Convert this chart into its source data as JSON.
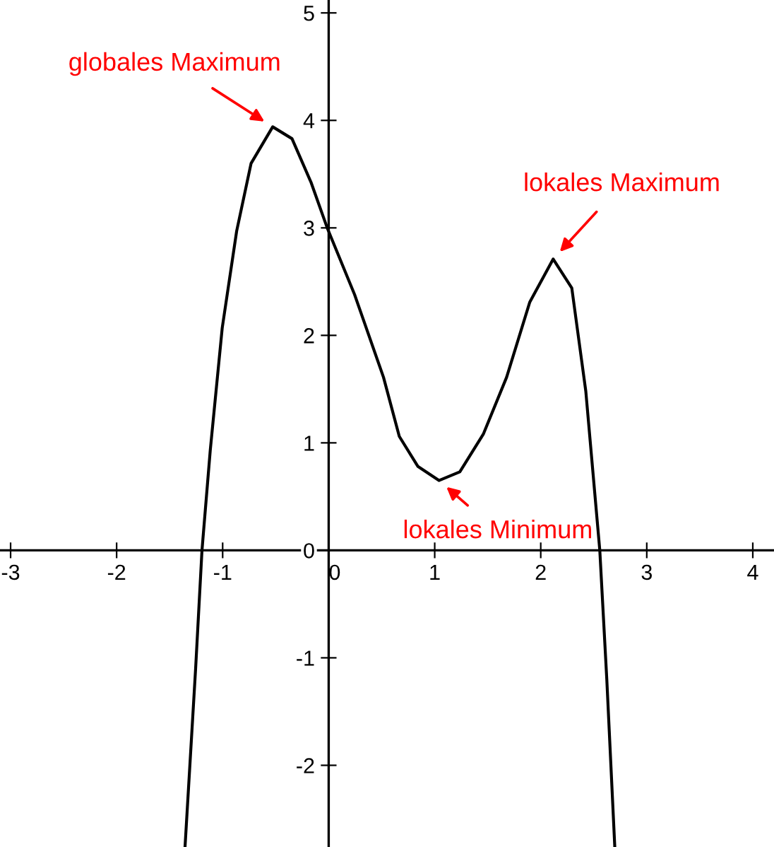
{
  "chart_data": {
    "type": "line",
    "series": [
      {
        "color": "#000000",
        "x": [
          -1.355,
          -1.255,
          -1.195,
          -1.117,
          -1.004,
          -0.868,
          -0.732,
          -0.528,
          -0.346,
          -0.165,
          -0.01,
          0.244,
          0.517,
          0.666,
          0.842,
          1.04,
          1.237,
          1.458,
          1.678,
          1.897,
          2.117,
          2.293,
          2.425,
          2.557,
          2.623,
          2.698
        ],
        "values": [
          -2.76,
          -1.1,
          0,
          0.93,
          2.07,
          2.97,
          3.6,
          3.94,
          3.83,
          3.42,
          2.99,
          2.38,
          1.61,
          1.06,
          0.78,
          0.65,
          0.73,
          1.08,
          1.61,
          2.31,
          2.71,
          2.44,
          1.48,
          0,
          -1.2,
          -2.75
        ]
      }
    ],
    "annotations": [
      {
        "text": "globales Maximum",
        "x": -0.528,
        "y": 3.94
      },
      {
        "text": "lokales Maximum",
        "x": 2.117,
        "y": 2.71
      },
      {
        "text": "lokales Minimum",
        "x": 1.04,
        "y": 0.65
      }
    ],
    "xlim": [
      -3.1,
      4.2
    ],
    "ylim": [
      -2.76,
      5.12
    ],
    "xticks": [
      -3,
      -2,
      -1,
      0,
      1,
      2,
      3,
      4
    ],
    "yticks": [
      -2,
      -1,
      0,
      1,
      2,
      3,
      4,
      5
    ],
    "grid": false,
    "legend": false,
    "marker": "none",
    "line_style": "solid"
  }
}
